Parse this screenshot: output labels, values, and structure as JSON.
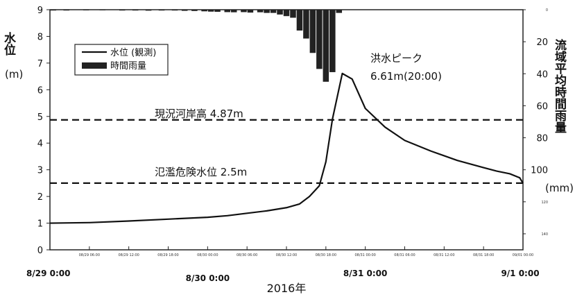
{
  "chart_data": {
    "type": "line",
    "xlabel": "2016年",
    "ylabel_left": "水位",
    "ylabel_left_unit": "(m)",
    "ylabel_right": "流域平均時間雨量",
    "ylabel_right_unit": "(mm)",
    "left_ylim": [
      0,
      9
    ],
    "left_ticks": [
      "0",
      "1",
      "2",
      "3",
      "4",
      "5",
      "6",
      "7",
      "8",
      "9"
    ],
    "right_ylim_inverted": [
      0,
      150
    ],
    "right_ticks": [
      "0",
      "20",
      "40",
      "60",
      "80",
      "100",
      "120",
      "140"
    ],
    "x_major_ticks": [
      "8/29 0:00",
      "8/30 0:00",
      "8/31 0:00",
      "9/1 0:00"
    ],
    "x_minor_ticks": [
      "08/29 06:00",
      "08/29 12:00",
      "08/29 18:00",
      "08/30 00:00",
      "08/30 06:00",
      "08/30 12:00",
      "08/30 18:00",
      "08/31 00:00",
      "08/31 06:00",
      "08/31 12:00",
      "08/31 18:00",
      "09/01 00:00"
    ],
    "legend": {
      "position": "upper-left",
      "items": [
        {
          "label": "水位 (観測)",
          "kind": "line"
        },
        {
          "label": "時間雨量",
          "kind": "bar"
        }
      ]
    },
    "grid": false,
    "series": [
      {
        "name": "水位 (観測)",
        "axis": "left",
        "points": [
          [
            0,
            1.0
          ],
          [
            6,
            1.02
          ],
          [
            12,
            1.08
          ],
          [
            18,
            1.15
          ],
          [
            24,
            1.22
          ],
          [
            27,
            1.28
          ],
          [
            30,
            1.37
          ],
          [
            33,
            1.46
          ],
          [
            36,
            1.58
          ],
          [
            38,
            1.72
          ],
          [
            39.5,
            2.0
          ],
          [
            41,
            2.4
          ],
          [
            42,
            3.3
          ],
          [
            43,
            4.9
          ],
          [
            44.5,
            6.61
          ],
          [
            46,
            6.4
          ],
          [
            48,
            5.3
          ],
          [
            51,
            4.6
          ],
          [
            54,
            4.1
          ],
          [
            58,
            3.7
          ],
          [
            62,
            3.35
          ],
          [
            66,
            3.08
          ],
          [
            68,
            2.95
          ],
          [
            70,
            2.85
          ],
          [
            71.5,
            2.7
          ],
          [
            72,
            2.5
          ]
        ]
      },
      {
        "name": "時間雨量",
        "axis": "right",
        "bars": [
          [
            0.5,
            0.5
          ],
          [
            2.5,
            0.5
          ],
          [
            5.5,
            0.4
          ],
          [
            8,
            0.3
          ],
          [
            11,
            0.5
          ],
          [
            13,
            0.5
          ],
          [
            15,
            0.6
          ],
          [
            17,
            0.5
          ],
          [
            19,
            0.5
          ],
          [
            20.5,
            0.7
          ],
          [
            22,
            0.8
          ],
          [
            23.5,
            1.0
          ],
          [
            24.5,
            1.2
          ],
          [
            25.5,
            1.3
          ],
          [
            27,
            1.5
          ],
          [
            28,
            1.6
          ],
          [
            29.5,
            1.5
          ],
          [
            30.5,
            1.8
          ],
          [
            32,
            1.6
          ],
          [
            33,
            2
          ],
          [
            34,
            2
          ],
          [
            35,
            3
          ],
          [
            36,
            4
          ],
          [
            37,
            5
          ],
          [
            38,
            13
          ],
          [
            39,
            18
          ],
          [
            40,
            27
          ],
          [
            41,
            37
          ],
          [
            42,
            45
          ],
          [
            43,
            39
          ],
          [
            44,
            2
          ]
        ]
      }
    ],
    "reference_lines": [
      {
        "label": "現況河岸高 4.87m",
        "y": 4.87,
        "style": "dashed"
      },
      {
        "label": "氾濫危険水位 2.5m",
        "y": 2.5,
        "style": "dashed"
      }
    ],
    "annotations": [
      {
        "line1": "洪水ピーク",
        "line2": "6.61m(20:00)"
      }
    ]
  }
}
